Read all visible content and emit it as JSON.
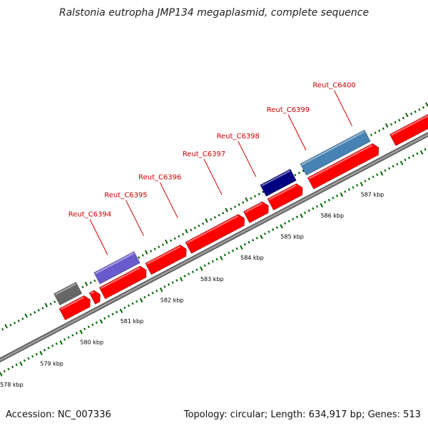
{
  "title": "Ralstonia eutropha JMP134 megaplasmid, complete sequence",
  "footer": {
    "accession": "Accession: NC_007336",
    "summary": "Topology: circular; Length: 634,917 bp; Genes: 513"
  },
  "colors": {
    "forward_gene": "#ff0000",
    "reverse_gene_dark": "#000080",
    "reverse_gene_purple": "#6a5acd",
    "reverse_gene_light": "#4682b4",
    "other_gene": "#666666",
    "backbone": "#999999",
    "tick": "#006400",
    "label": "#cc0000"
  },
  "gene_labels": [
    {
      "name": "Reut_C6394",
      "pos": 581.65
    },
    {
      "name": "Reut_C6395",
      "pos": 582.55
    },
    {
      "name": "Reut_C6396",
      "pos": 583.4
    },
    {
      "name": "Reut_C6397",
      "pos": 584.5
    },
    {
      "name": "Reut_C6398",
      "pos": 585.35
    },
    {
      "name": "Reut_C6399",
      "pos": 586.6
    },
    {
      "name": "Reut_C6400",
      "pos": 587.75
    }
  ],
  "kbp_labels": [
    "578 kbp",
    "579 kbp",
    "580 kbp",
    "581 kbp",
    "582 kbp",
    "583 kbp",
    "584 kbp",
    "585 kbp",
    "586 kbp",
    "587 kbp"
  ],
  "genes": [
    {
      "track": "reverse",
      "start": 580.2,
      "end": 580.75,
      "color": "other_gene"
    },
    {
      "track": "forward",
      "start": 580.15,
      "end": 580.85,
      "color": "forward_gene"
    },
    {
      "track": "forward",
      "start": 580.9,
      "end": 581.1,
      "color": "forward_gene"
    },
    {
      "track": "reverse",
      "start": 581.2,
      "end": 582.2,
      "color": "reverse_gene_purple"
    },
    {
      "track": "forward",
      "start": 581.15,
      "end": 582.25,
      "color": "forward_gene"
    },
    {
      "track": "forward",
      "start": 582.3,
      "end": 583.25,
      "color": "forward_gene"
    },
    {
      "track": "forward",
      "start": 583.3,
      "end": 584.7,
      "color": "forward_gene"
    },
    {
      "track": "forward",
      "start": 584.75,
      "end": 585.3,
      "color": "forward_gene"
    },
    {
      "track": "reverse",
      "start": 585.35,
      "end": 586.1,
      "color": "reverse_gene_dark"
    },
    {
      "track": "forward",
      "start": 585.35,
      "end": 586.15,
      "color": "forward_gene"
    },
    {
      "track": "reverse",
      "start": 586.35,
      "end": 587.95,
      "color": "reverse_gene_light"
    },
    {
      "track": "forward",
      "start": 586.35,
      "end": 588.05,
      "color": "forward_gene"
    },
    {
      "track": "forward",
      "start": 588.4,
      "end": 589.5,
      "color": "forward_gene"
    }
  ]
}
